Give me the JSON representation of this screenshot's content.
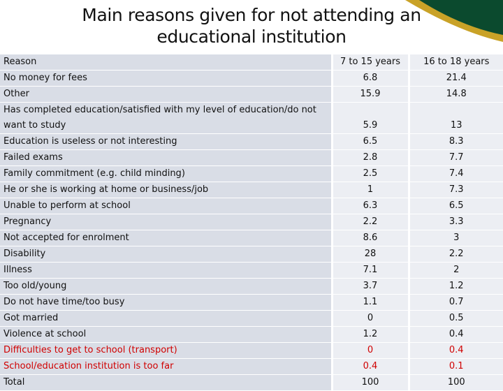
{
  "title": "Main reasons given for not attending an educational institution",
  "colors": {
    "highlight": "#d00000",
    "reason_bg": "#d9dde6",
    "value_bg": "#eceef3",
    "corner_green": "#0b4a2e",
    "corner_gold": "#c9a227"
  },
  "table": {
    "headers": [
      "Reason",
      "7 to 15 years",
      "16 to 18 years"
    ],
    "rows": [
      [
        "No money for fees",
        "6.8",
        "21.4"
      ],
      [
        "Other",
        "15.9",
        "14.8"
      ],
      [
        "Has completed education/satisfied with my level of education/do not want to study",
        "5.9",
        "13"
      ],
      [
        "Education is useless or not interesting",
        "6.5",
        "8.3"
      ],
      [
        "Failed exams",
        "2.8",
        "7.7"
      ],
      [
        "Family commitment (e.g. child minding)",
        "2.5",
        "7.4"
      ],
      [
        "He or she is working at home or business/job",
        "1",
        "7.3"
      ],
      [
        "Unable to perform at school",
        "6.3",
        "6.5"
      ],
      [
        "Pregnancy",
        "2.2",
        "3.3"
      ],
      [
        "Not accepted for enrolment",
        "8.6",
        "3"
      ],
      [
        "Disability",
        "28",
        "2.2"
      ],
      [
        "Illness",
        "7.1",
        "2"
      ],
      [
        "Too old/young",
        "3.7",
        "1.2"
      ],
      [
        "Do not have time/too busy",
        "1.1",
        "0.7"
      ],
      [
        "Got married",
        "0",
        "0.5"
      ],
      [
        "Violence at school",
        "1.2",
        "0.4"
      ],
      [
        "Difficulties to get to school (transport)",
        "0",
        "0.4"
      ],
      [
        "School/education institution is too far",
        "0.4",
        "0.1"
      ],
      [
        "Total",
        "100",
        "100"
      ]
    ]
  }
}
